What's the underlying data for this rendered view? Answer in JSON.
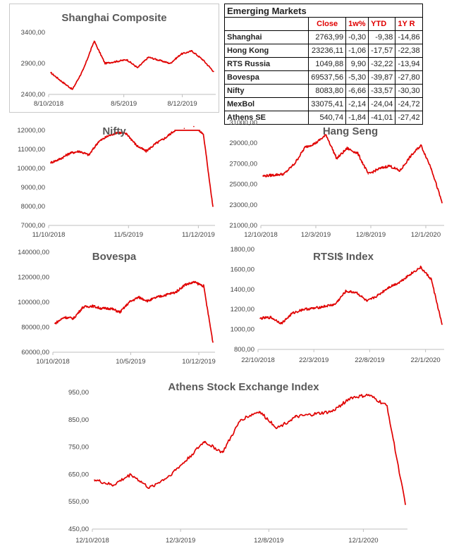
{
  "table": {
    "title": "Emerging Markets",
    "headers": [
      "",
      "Close",
      "1w%",
      "YTD",
      "1Y R"
    ],
    "rows": [
      {
        "name": "Shanghai",
        "close": "2763,99",
        "w1": "-0,30",
        "ytd": "-9,38",
        "y1r": "-14,86"
      },
      {
        "name": "Hong Kong",
        "close": "23236,11",
        "w1": "-1,06",
        "ytd": "-17,57",
        "y1r": "-22,38"
      },
      {
        "name": "RTS Russia",
        "close": "1049,88",
        "w1": "9,90",
        "ytd": "-32,22",
        "y1r": "-13,94"
      },
      {
        "name": "Bovespa",
        "close": "69537,56",
        "w1": "-5,30",
        "ytd": "-39,87",
        "y1r": "-27,80"
      },
      {
        "name": "Nifty",
        "close": "8083,80",
        "w1": "-6,66",
        "ytd": "-33,57",
        "y1r": "-30,30"
      },
      {
        "name": "MexBol",
        "close": "33075,41",
        "w1": "-2,14",
        "ytd": "-24,04",
        "y1r": "-24,72"
      },
      {
        "name": "Athens SE",
        "close": "540,74",
        "w1": "-1,84",
        "ytd": "-41,01",
        "y1r": "-27,42"
      }
    ]
  },
  "line_color": "#e00000",
  "chart_data": [
    {
      "id": "shanghai",
      "type": "line",
      "title": "Shanghai Composite",
      "ylim": [
        2400,
        3400
      ],
      "yticks": [
        "2400,00",
        "2900,00",
        "3400,00"
      ],
      "xticks": [
        "8/10/2018",
        "8/5/2019",
        "8/12/2019"
      ],
      "x": [
        "8/10/2018",
        "1/2019",
        "2/2019",
        "3/2019",
        "4/2019",
        "5/2019",
        "6/2019",
        "7/2019",
        "8/2019",
        "9/2019",
        "10/2019",
        "11/2019",
        "12/2019",
        "1/2020",
        "2/2020",
        "3/2020"
      ],
      "values": [
        2750,
        2610,
        2480,
        2800,
        3260,
        2900,
        2930,
        2960,
        2830,
        3000,
        2950,
        2900,
        3050,
        3100,
        2960,
        2770
      ]
    },
    {
      "id": "nifty",
      "type": "line",
      "title": "Nifty",
      "ylim": [
        7000,
        12000
      ],
      "yticks": [
        "7000,00",
        "8000,00",
        "9000,00",
        "10000,00",
        "11000,00",
        "12000,00"
      ],
      "xticks": [
        "11/10/2018",
        "11/5/2019",
        "11/12/2019"
      ],
      "x": [
        "11/10/2018",
        "11/2018",
        "12/2018",
        "1/2019",
        "2/2019",
        "3/2019",
        "4/2019",
        "5/2019",
        "6/2019",
        "7/2019",
        "8/2019",
        "9/2019",
        "10/2019",
        "11/2019",
        "12/2019",
        "1/2020",
        "2/2020",
        "3/2020"
      ],
      "values": [
        10300,
        10500,
        10800,
        10900,
        10700,
        11400,
        11700,
        11900,
        11800,
        11200,
        10900,
        11300,
        11600,
        12000,
        12100,
        12200,
        11800,
        8000
      ]
    },
    {
      "id": "hangseng",
      "type": "line",
      "title": "Hang Seng",
      "ylim": [
        21000,
        31000
      ],
      "yticks": [
        "21000,00",
        "23000,00",
        "25000,00",
        "27000,00",
        "29000,00",
        "31000,00"
      ],
      "xticks": [
        "12/10/2018",
        "12/3/2019",
        "12/8/2019",
        "12/1/2020"
      ],
      "x": [
        "12/10/2018",
        "11/2018",
        "12/2018",
        "1/2019",
        "2/2019",
        "3/2019",
        "4/2019",
        "5/2019",
        "6/2019",
        "7/2019",
        "8/2019",
        "9/2019",
        "10/2019",
        "11/2019",
        "12/2019",
        "1/2020",
        "2/2020",
        "3/2020"
      ],
      "values": [
        25800,
        25900,
        26000,
        27000,
        28600,
        29000,
        29800,
        27500,
        28500,
        28000,
        26000,
        26500,
        26800,
        26300,
        27700,
        28800,
        26500,
        23200
      ]
    },
    {
      "id": "bovespa",
      "type": "line",
      "title": "Bovespa",
      "ylim": [
        60000,
        140000
      ],
      "yticks": [
        "60000,00",
        "80000,00",
        "100000,00",
        "120000,00",
        "140000,00"
      ],
      "xticks": [
        "10/10/2018",
        "10/5/2019",
        "10/12/2019"
      ],
      "x": [
        "10/10/2018",
        "11/2018",
        "12/2018",
        "1/2019",
        "2/2019",
        "3/2019",
        "4/2019",
        "5/2019",
        "6/2019",
        "7/2019",
        "8/2019",
        "9/2019",
        "10/2019",
        "11/2019",
        "12/2019",
        "1/2020",
        "2/2020",
        "3/2020"
      ],
      "values": [
        83000,
        88000,
        87000,
        96000,
        97000,
        95000,
        95000,
        92000,
        100000,
        104000,
        101000,
        104000,
        106000,
        108000,
        114000,
        116000,
        113000,
        68000
      ]
    },
    {
      "id": "rtsi",
      "type": "line",
      "title": "RTSI$ Index",
      "ylim": [
        800,
        1800
      ],
      "yticks": [
        "800,00",
        "1000,00",
        "1200,00",
        "1400,00",
        "1600,00",
        "1800,00"
      ],
      "xticks": [
        "22/10/2018",
        "22/3/2019",
        "22/8/2019",
        "22/1/2020"
      ],
      "x": [
        "22/10/2018",
        "11/2018",
        "12/2018",
        "1/2019",
        "2/2019",
        "3/2019",
        "4/2019",
        "5/2019",
        "6/2019",
        "7/2019",
        "8/2019",
        "9/2019",
        "10/2019",
        "11/2019",
        "12/2019",
        "1/2020",
        "2/2020",
        "3/2020"
      ],
      "values": [
        1110,
        1120,
        1060,
        1160,
        1200,
        1210,
        1230,
        1250,
        1380,
        1370,
        1280,
        1340,
        1420,
        1470,
        1550,
        1620,
        1500,
        1050
      ]
    },
    {
      "id": "athens",
      "type": "line",
      "title": "Athens Stock Exchange Index",
      "ylim": [
        450,
        950
      ],
      "yticks": [
        "450,00",
        "550,00",
        "650,00",
        "750,00",
        "850,00",
        "950,00"
      ],
      "xticks": [
        "12/10/2018",
        "12/3/2019",
        "12/8/2019",
        "12/1/2020"
      ],
      "x": [
        "12/10/2018",
        "11/2018",
        "12/2018",
        "1/2019",
        "2/2019",
        "3/2019",
        "4/2019",
        "5/2019",
        "6/2019",
        "7/2019",
        "8/2019",
        "9/2019",
        "10/2019",
        "11/2019",
        "12/2019",
        "1/2020",
        "2/2020",
        "3/2020"
      ],
      "values": [
        630,
        610,
        650,
        600,
        640,
        700,
        770,
        730,
        850,
        880,
        820,
        860,
        870,
        880,
        930,
        940,
        900,
        540
      ]
    }
  ]
}
